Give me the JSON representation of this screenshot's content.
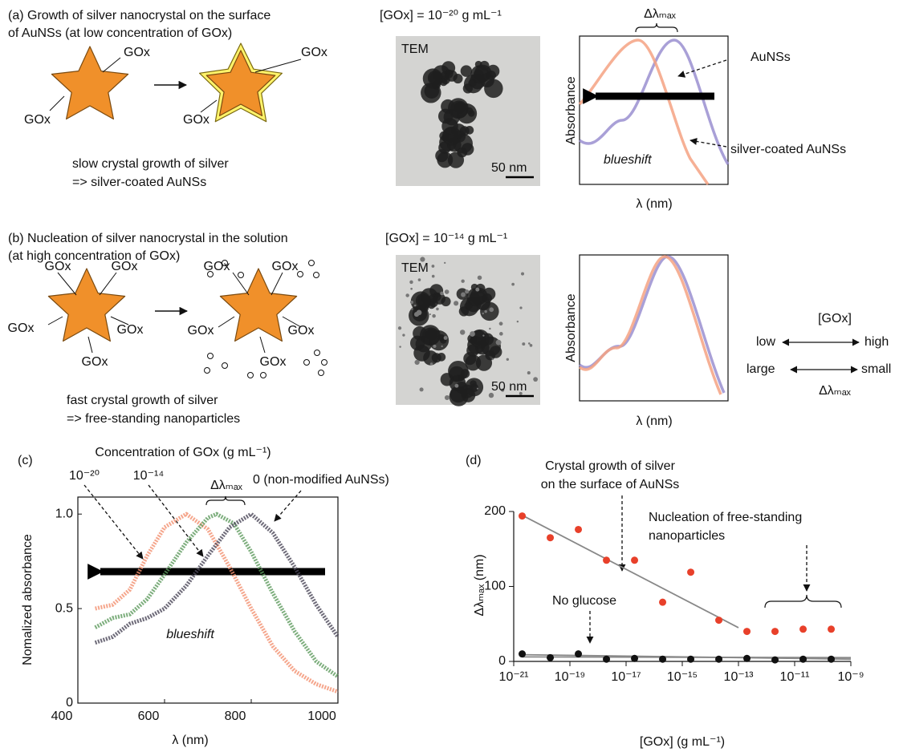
{
  "panel_a": {
    "title": [
      "(a) Growth of silver nanocrystal on the surface",
      " of  AuNSs (at low concentration of GOx)"
    ],
    "gox_labels": [
      "GOx",
      "GOx",
      "GOx",
      "GOx"
    ],
    "caption": [
      "slow crystal growth of silver",
      "=> silver-coated AuNSs"
    ],
    "concentration": "[GOx] = 10⁻²⁰ g mL⁻¹",
    "tem_label": "TEM",
    "scale_bar": "50 nm",
    "shift_label": "Δλₘₐₓ",
    "curve_labels": [
      "AuNSs",
      "silver-coated AuNSs"
    ],
    "y_label": "Absorbance",
    "x_label": "λ (nm)",
    "note": "blueshift"
  },
  "panel_b": {
    "title": [
      "(b) Nucleation of silver nanocrystal in the solution",
      "(at high concentration of GOx)"
    ],
    "gox_labels": [
      "GOx",
      "GOx",
      "GOx",
      "GOx",
      "GOx",
      "GOx",
      "GOx",
      "GOx",
      "GOx",
      "GOx"
    ],
    "caption": [
      "fast crystal growth of silver",
      "=> free-standing nanoparticles"
    ],
    "concentration": "[GOx] = 10⁻¹⁴ g mL⁻¹",
    "tem_label": "TEM",
    "scale_bar": "50 nm",
    "y_label": "Absorbance",
    "x_label": "λ (nm)",
    "trend": {
      "title": "[GOx]",
      "low": "low",
      "high": "high",
      "large": "large",
      "small": "small",
      "quantity": "Δλₘₐₓ"
    }
  },
  "chart_data": [
    {
      "type": "line",
      "panel_label": "(c)",
      "title": "Concentration of GOx (g mL⁻¹)",
      "x_label": "λ (nm)",
      "y_label": "Nomalized absorbance",
      "annotations": [
        "Δλₘₐₓ",
        "blueshift"
      ],
      "xlim": [
        400,
        1000
      ],
      "xticks": [
        400,
        600,
        800,
        1000
      ],
      "ylim": [
        0,
        1.09
      ],
      "yticks": [
        0,
        0.5,
        {
          "value": 1,
          "label": "1.0"
        }
      ],
      "series": [
        {
          "name": "10⁻²⁰",
          "color": "#f2906f",
          "x": [
            440,
            480,
            520,
            560,
            600,
            650,
            700,
            750,
            800,
            850,
            900,
            950,
            1000
          ],
          "values": [
            0.5,
            0.52,
            0.6,
            0.78,
            0.93,
            1.0,
            0.92,
            0.72,
            0.5,
            0.3,
            0.17,
            0.1,
            0.06
          ]
        },
        {
          "name": "10⁻¹⁴",
          "color": "#5c9a5c",
          "x": [
            440,
            480,
            520,
            560,
            600,
            650,
            700,
            720,
            760,
            800,
            850,
            900,
            950,
            1000
          ],
          "values": [
            0.4,
            0.45,
            0.47,
            0.55,
            0.68,
            0.85,
            0.98,
            1.0,
            0.95,
            0.8,
            0.58,
            0.38,
            0.22,
            0.14
          ]
        },
        {
          "name": "0 (non-modified AuNSs)",
          "color": "#4a4658",
          "x": [
            440,
            480,
            520,
            560,
            600,
            650,
            700,
            750,
            800,
            850,
            900,
            950,
            1000
          ],
          "values": [
            0.32,
            0.35,
            0.42,
            0.45,
            0.5,
            0.62,
            0.78,
            0.93,
            1.0,
            0.9,
            0.72,
            0.52,
            0.35
          ]
        }
      ]
    },
    {
      "type": "scatter",
      "panel_label": "(d)",
      "x_label": "[GOx] (g mL⁻¹)",
      "y_label": "Δλₘₐₓ (nm)",
      "annotations": [
        [
          "Crystal growth of silver",
          "on the surface of AuNSs"
        ],
        [
          "Nucleation of free-standing",
          "nanoparticles"
        ]
      ],
      "xscale": "log",
      "xlim": [
        1e-21,
        1e-09
      ],
      "xticks": [
        {
          "value": 1e-21,
          "label": "10⁻²¹"
        },
        {
          "value": 1e-19,
          "label": "10⁻¹⁹"
        },
        {
          "value": 1e-17,
          "label": "10⁻¹⁷"
        },
        {
          "value": 1e-15,
          "label": "10⁻¹⁵"
        },
        {
          "value": 1e-13,
          "label": "10⁻¹³"
        },
        {
          "value": 1e-11,
          "label": "10⁻¹¹"
        },
        {
          "value": 1e-09,
          "label": "10⁻⁹"
        }
      ],
      "ylim": [
        0,
        200
      ],
      "yticks": [
        0,
        100,
        200
      ],
      "series": [
        {
          "color": "#e8402a",
          "x": [
            2e-21,
            2e-20,
            2e-19,
            2e-18,
            2e-17,
            2e-16,
            2e-15,
            2e-14,
            2e-13,
            2e-12,
            2e-11,
            2e-10
          ],
          "values": [
            194,
            165,
            176,
            135,
            135,
            79,
            119,
            55,
            40,
            40,
            43,
            43
          ]
        },
        {
          "name": "No glucose",
          "color": "#111111",
          "x": [
            2e-21,
            2e-20,
            2e-19,
            2e-18,
            2e-17,
            2e-16,
            2e-15,
            2e-14,
            2e-13,
            2e-12,
            2e-11,
            2e-10
          ],
          "values": [
            10,
            5,
            10,
            3,
            4,
            3,
            3,
            3,
            4,
            2,
            3,
            3
          ]
        }
      ],
      "fit_lines": [
        {
          "x": [
            2e-21,
            1e-13
          ],
          "values": [
            195,
            45
          ]
        },
        {
          "x": [
            2e-21,
            1e-09
          ],
          "values": [
            9,
            3
          ]
        },
        {
          "x": [
            2e-21,
            1e-09
          ],
          "values": [
            6,
            5
          ]
        }
      ]
    }
  ]
}
